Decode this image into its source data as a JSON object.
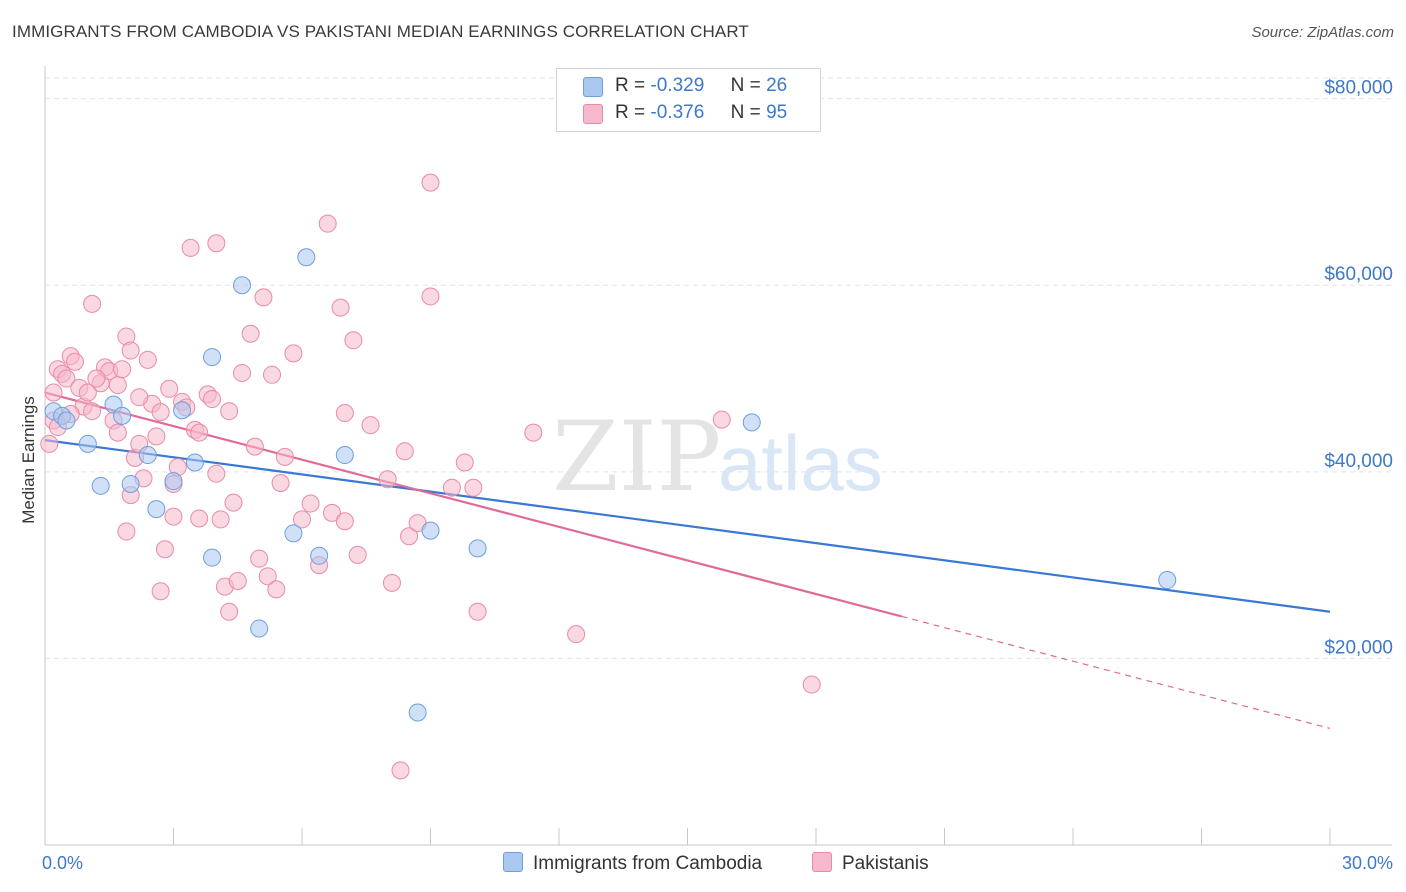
{
  "title": "IMMIGRANTS FROM CAMBODIA VS PAKISTANI MEDIAN EARNINGS CORRELATION CHART",
  "source": "Source: ZipAtlas.com",
  "watermark": {
    "zip": "ZIP",
    "atlas": "atlas"
  },
  "legend": [
    {
      "r_label": "R =",
      "r_value": "-0.329",
      "n_label": "N =",
      "n_value": "26",
      "color": "#a9c8f0"
    },
    {
      "r_label": "R =",
      "r_value": "-0.376",
      "n_label": "N =",
      "n_value": "95",
      "color": "#f6b8cb"
    }
  ],
  "bottom_legend": [
    {
      "label": "Immigrants from Cambodia",
      "color": "#a9c8f0"
    },
    {
      "label": "Pakistanis",
      "color": "#f6b8cb"
    }
  ],
  "chart_data": {
    "type": "scatter",
    "title": "IMMIGRANTS FROM CAMBODIA VS PAKISTANI MEDIAN EARNINGS CORRELATION CHART",
    "xlabel": "",
    "ylabel": "Median Earnings",
    "xlim": [
      0,
      30
    ],
    "ylim": [
      0,
      82000
    ],
    "x_tick_labels": [
      {
        "value": 0,
        "label": "0.0%"
      },
      {
        "value": 30,
        "label": "30.0%"
      }
    ],
    "y_tick_labels": [
      {
        "value": 20000,
        "label": "$20,000"
      },
      {
        "value": 40000,
        "label": "$40,000"
      },
      {
        "value": 60000,
        "label": "$60,000"
      },
      {
        "value": 80000,
        "label": "$80,000"
      }
    ],
    "series": [
      {
        "name": "Immigrants from Cambodia",
        "color": "#a9c8f0",
        "stroke": "#6e9fdc",
        "trend_color": "#3a78d4",
        "trend": {
          "x0": 0,
          "y0": 43400,
          "x1": 30,
          "y1": 25000
        },
        "points": [
          [
            0.2,
            46500
          ],
          [
            0.4,
            46000
          ],
          [
            1.0,
            43000
          ],
          [
            1.3,
            38500
          ],
          [
            1.6,
            47200
          ],
          [
            1.8,
            46000
          ],
          [
            2.0,
            38700
          ],
          [
            2.4,
            41800
          ],
          [
            2.6,
            36000
          ],
          [
            3.0,
            39000
          ],
          [
            3.2,
            46600
          ],
          [
            3.5,
            41000
          ],
          [
            3.9,
            30800
          ],
          [
            3.9,
            52300
          ],
          [
            4.6,
            60000
          ],
          [
            5.0,
            23200
          ],
          [
            5.8,
            33400
          ],
          [
            6.1,
            63000
          ],
          [
            6.4,
            31000
          ],
          [
            7.0,
            41800
          ],
          [
            8.7,
            14200
          ],
          [
            9.0,
            33700
          ],
          [
            10.1,
            31800
          ],
          [
            16.5,
            45300
          ],
          [
            26.2,
            28400
          ],
          [
            0.5,
            45500
          ]
        ]
      },
      {
        "name": "Pakistanis",
        "color": "#f6b8cb",
        "stroke": "#e98aa8",
        "trend_color": "#e06a98",
        "trend": {
          "x0": 0,
          "y0": 48500,
          "x1": 20,
          "y1": 24500
        },
        "trend_dashed": {
          "x0": 20,
          "y0": 24500,
          "x1": 30,
          "y1": 12500
        },
        "points": [
          [
            0.1,
            43000
          ],
          [
            0.2,
            48500
          ],
          [
            0.2,
            45500
          ],
          [
            0.3,
            51000
          ],
          [
            0.4,
            50500
          ],
          [
            0.5,
            50000
          ],
          [
            0.6,
            52400
          ],
          [
            0.7,
            51800
          ],
          [
            0.8,
            49000
          ],
          [
            0.9,
            47000
          ],
          [
            1.0,
            48500
          ],
          [
            1.1,
            46500
          ],
          [
            1.1,
            58000
          ],
          [
            1.3,
            49500
          ],
          [
            1.4,
            51200
          ],
          [
            1.5,
            50800
          ],
          [
            1.6,
            45500
          ],
          [
            1.7,
            49300
          ],
          [
            1.7,
            44200
          ],
          [
            1.8,
            51000
          ],
          [
            1.9,
            33600
          ],
          [
            1.9,
            54500
          ],
          [
            2.0,
            53000
          ],
          [
            2.1,
            41500
          ],
          [
            2.2,
            43000
          ],
          [
            2.3,
            39300
          ],
          [
            2.4,
            52000
          ],
          [
            2.5,
            47300
          ],
          [
            2.6,
            43800
          ],
          [
            2.7,
            27200
          ],
          [
            2.7,
            46400
          ],
          [
            2.8,
            31700
          ],
          [
            2.9,
            48900
          ],
          [
            3.0,
            35200
          ],
          [
            3.0,
            38700
          ],
          [
            3.2,
            47500
          ],
          [
            3.3,
            46900
          ],
          [
            3.4,
            64000
          ],
          [
            3.5,
            44500
          ],
          [
            3.6,
            44200
          ],
          [
            3.6,
            35000
          ],
          [
            3.8,
            48300
          ],
          [
            3.9,
            47800
          ],
          [
            4.0,
            64500
          ],
          [
            4.1,
            34900
          ],
          [
            4.2,
            27700
          ],
          [
            4.3,
            25000
          ],
          [
            4.3,
            46500
          ],
          [
            4.4,
            36700
          ],
          [
            4.5,
            28300
          ],
          [
            4.6,
            50600
          ],
          [
            4.8,
            54800
          ],
          [
            4.9,
            42700
          ],
          [
            5.0,
            30700
          ],
          [
            5.1,
            58700
          ],
          [
            5.2,
            28800
          ],
          [
            5.3,
            50400
          ],
          [
            5.4,
            27400
          ],
          [
            5.5,
            38800
          ],
          [
            5.8,
            52700
          ],
          [
            6.0,
            34900
          ],
          [
            6.2,
            36600
          ],
          [
            6.4,
            30000
          ],
          [
            6.6,
            66600
          ],
          [
            6.7,
            35600
          ],
          [
            6.9,
            57600
          ],
          [
            7.0,
            46300
          ],
          [
            7.0,
            34700
          ],
          [
            7.2,
            54100
          ],
          [
            7.3,
            31100
          ],
          [
            8.0,
            39200
          ],
          [
            8.1,
            28100
          ],
          [
            8.3,
            8000
          ],
          [
            8.4,
            42200
          ],
          [
            8.5,
            33100
          ],
          [
            8.7,
            34500
          ],
          [
            9.0,
            71000
          ],
          [
            9.0,
            58800
          ],
          [
            9.5,
            38300
          ],
          [
            10.0,
            38300
          ],
          [
            10.1,
            25000
          ],
          [
            11.4,
            44200
          ],
          [
            12.4,
            22600
          ],
          [
            15.8,
            45600
          ],
          [
            17.9,
            17200
          ],
          [
            0.3,
            44800
          ],
          [
            0.6,
            46200
          ],
          [
            1.2,
            50000
          ],
          [
            2.2,
            48000
          ],
          [
            3.1,
            40500
          ],
          [
            4.0,
            39800
          ],
          [
            5.6,
            41600
          ],
          [
            7.6,
            45000
          ],
          [
            9.8,
            41000
          ],
          [
            2.0,
            37500
          ]
        ]
      }
    ]
  }
}
